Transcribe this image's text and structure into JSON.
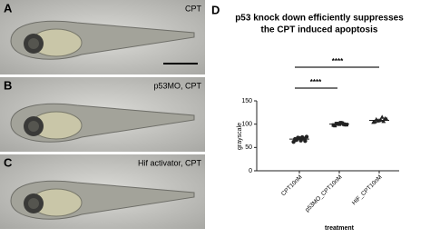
{
  "panels": [
    {
      "label": "A",
      "caption": "CPT"
    },
    {
      "label": "B",
      "caption": "p53MO, CPT"
    },
    {
      "label": "C",
      "caption": "Hif activator, CPT"
    }
  ],
  "chart_data": {
    "type": "dot",
    "panel_label": "D",
    "title": [
      "p53 knock down efficiently suppresses",
      "the CPT induced apoptosis"
    ],
    "ylabel": "grayscale",
    "xlabel": "treatment",
    "categories": [
      "CPT10nM",
      "p53MO_CPT10nM",
      "HIF_CPT10nM"
    ],
    "groups": [
      {
        "marker": "circle",
        "mean": 68,
        "values": [
          62,
          66,
          70,
          72,
          64,
          68,
          71,
          65,
          69,
          73
        ]
      },
      {
        "marker": "square",
        "mean": 100,
        "values": [
          98,
          101,
          100,
          102,
          99,
          97,
          101,
          103,
          100,
          99
        ]
      },
      {
        "marker": "triangle",
        "mean": 108,
        "values": [
          104,
          110,
          108,
          115,
          112,
          105,
          107,
          109,
          106,
          111
        ]
      }
    ],
    "annotations": [
      "****",
      "****"
    ],
    "ylim": [
      0,
      150
    ],
    "yticks": [
      0,
      50,
      100,
      150
    ],
    "color": "#222222"
  }
}
